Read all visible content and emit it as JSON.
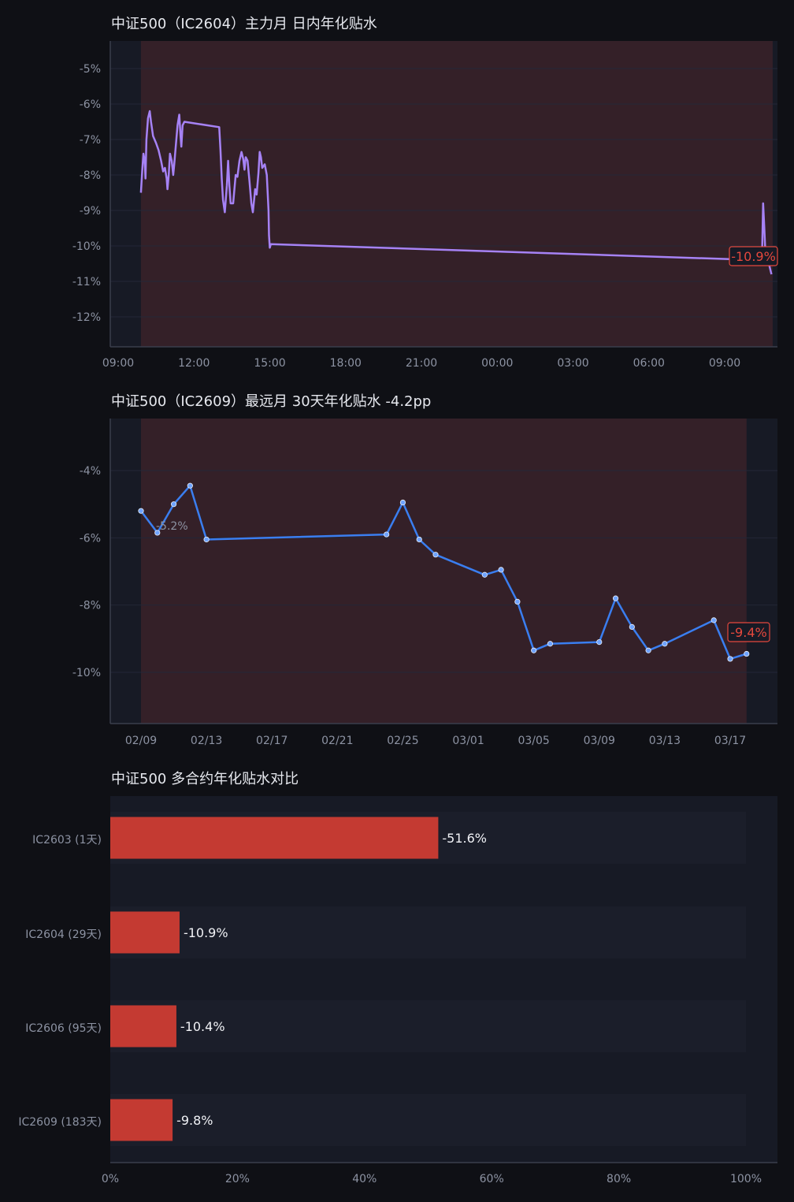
{
  "chart_data": [
    {
      "type": "line",
      "title": "中证500（IC2604）主力月 日内年化贴水",
      "x_unit": "time of day (hours since 09:00 on day 1; day 2 continues past 24)",
      "x_ticks": [
        "09:00",
        "12:00",
        "15:00",
        "18:00",
        "21:00",
        "00:00",
        "03:00",
        "06:00",
        "09:00"
      ],
      "xlim": [
        9.0,
        35.2
      ],
      "ylim": [
        -12.8,
        -4.2
      ],
      "y_ticks": [
        -5,
        -6,
        -7,
        -8,
        -9,
        -10,
        -11,
        -12
      ],
      "y_suffix": "%",
      "shade": {
        "x_start": 9.9,
        "x_end": 34.9,
        "color": "#342028"
      },
      "series": [
        {
          "color": "#a682f5",
          "points": [
            [
              9.9,
              -8.5
            ],
            [
              9.95,
              -7.9
            ],
            [
              10.0,
              -7.4
            ],
            [
              10.05,
              -7.6
            ],
            [
              10.08,
              -8.1
            ],
            [
              10.12,
              -7.0
            ],
            [
              10.18,
              -6.4
            ],
            [
              10.25,
              -6.2
            ],
            [
              10.3,
              -6.5
            ],
            [
              10.38,
              -6.9
            ],
            [
              10.5,
              -7.1
            ],
            [
              10.6,
              -7.3
            ],
            [
              10.7,
              -7.6
            ],
            [
              10.78,
              -7.9
            ],
            [
              10.85,
              -7.8
            ],
            [
              10.92,
              -8.1
            ],
            [
              10.95,
              -8.4
            ],
            [
              11.0,
              -8.0
            ],
            [
              11.05,
              -7.4
            ],
            [
              11.12,
              -7.6
            ],
            [
              11.18,
              -8.0
            ],
            [
              11.22,
              -7.7
            ],
            [
              11.28,
              -7.2
            ],
            [
              11.35,
              -6.6
            ],
            [
              11.42,
              -6.3
            ],
            [
              11.47,
              -6.9
            ],
            [
              11.5,
              -7.2
            ],
            [
              11.55,
              -6.6
            ],
            [
              11.62,
              -6.5
            ],
            [
              13.0,
              -6.65
            ],
            [
              13.05,
              -7.3
            ],
            [
              13.1,
              -8.1
            ],
            [
              13.15,
              -8.7
            ],
            [
              13.22,
              -9.05
            ],
            [
              13.3,
              -8.3
            ],
            [
              13.35,
              -7.6
            ],
            [
              13.4,
              -8.3
            ],
            [
              13.45,
              -8.8
            ],
            [
              13.55,
              -8.8
            ],
            [
              13.6,
              -8.4
            ],
            [
              13.65,
              -8.0
            ],
            [
              13.72,
              -8.05
            ],
            [
              13.8,
              -7.6
            ],
            [
              13.88,
              -7.35
            ],
            [
              13.95,
              -7.55
            ],
            [
              14.0,
              -7.85
            ],
            [
              14.05,
              -7.5
            ],
            [
              14.12,
              -7.6
            ],
            [
              14.2,
              -8.2
            ],
            [
              14.27,
              -8.8
            ],
            [
              14.33,
              -9.05
            ],
            [
              14.38,
              -8.7
            ],
            [
              14.42,
              -8.4
            ],
            [
              14.48,
              -8.55
            ],
            [
              14.55,
              -7.95
            ],
            [
              14.6,
              -7.35
            ],
            [
              14.65,
              -7.5
            ],
            [
              14.7,
              -7.8
            ],
            [
              14.8,
              -7.7
            ],
            [
              14.88,
              -8.0
            ],
            [
              14.95,
              -9.0
            ],
            [
              14.97,
              -9.7
            ],
            [
              15.0,
              -10.05
            ],
            [
              15.04,
              -9.95
            ],
            [
              34.4,
              -10.4
            ],
            [
              34.48,
              -10.2
            ],
            [
              34.52,
              -8.8
            ],
            [
              34.56,
              -9.4
            ],
            [
              34.6,
              -10.0
            ],
            [
              34.65,
              -10.4
            ],
            [
              34.75,
              -10.5
            ],
            [
              34.85,
              -10.8
            ]
          ]
        }
      ],
      "end_label": "-10.9%"
    },
    {
      "type": "line",
      "title": "中证500（IC2609）最远月 30天年化贴水   -4.2pp",
      "x_unit": "date",
      "x_ticks": [
        "02/09",
        "02/13",
        "02/17",
        "02/21",
        "02/25",
        "03/01",
        "03/05",
        "03/09",
        "03/13",
        "03/17"
      ],
      "x_tick_dates": [
        "02/09",
        "02/13",
        "02/17",
        "02/21",
        "02/25",
        "03/01",
        "03/05",
        "03/09",
        "03/13",
        "03/17"
      ],
      "ylim": [
        -11.5,
        -2.5
      ],
      "y_ticks": [
        -4,
        -6,
        -8,
        -10
      ],
      "y_suffix": "%",
      "shade": {
        "x_start": "02/09",
        "x_end": "03/18",
        "color": "#342028"
      },
      "series": [
        {
          "color": "#3a7ef0",
          "points": [
            [
              "02/09",
              -5.2
            ],
            [
              "02/10",
              -5.85
            ],
            [
              "02/11",
              -5.0
            ],
            [
              "02/12",
              -4.45
            ],
            [
              "02/13",
              -6.05
            ],
            [
              "02/24",
              -5.9
            ],
            [
              "02/25",
              -4.95
            ],
            [
              "02/26",
              -6.05
            ],
            [
              "02/27",
              -6.5
            ],
            [
              "03/02",
              -7.1
            ],
            [
              "03/03",
              -6.95
            ],
            [
              "03/04",
              -7.9
            ],
            [
              "03/05",
              -9.35
            ],
            [
              "03/06",
              -9.15
            ],
            [
              "03/09",
              -9.1
            ],
            [
              "03/10",
              -7.8
            ],
            [
              "03/11",
              -8.65
            ],
            [
              "03/12",
              -9.35
            ],
            [
              "03/13",
              -9.15
            ],
            [
              "03/16",
              -8.45
            ],
            [
              "03/17",
              -9.6
            ],
            [
              "03/18",
              -9.45
            ]
          ]
        }
      ],
      "start_label": "-5.2%",
      "end_label": "-9.4%"
    },
    {
      "type": "bar",
      "orientation": "horizontal",
      "title": "中证500 多合约年化贴水对比",
      "categories": [
        "IC2603 (1天)",
        "IC2604 (29天)",
        "IC2606 (95天)",
        "IC2609 (183天)"
      ],
      "values": [
        51.6,
        10.9,
        10.4,
        9.8
      ],
      "data_labels": [
        "-51.6%",
        "-10.9%",
        "-10.4%",
        "-9.8%"
      ],
      "xlim": [
        0,
        105
      ],
      "x_ticks": [
        "0%",
        "20%",
        "40%",
        "60%",
        "80%",
        "100%"
      ],
      "color": "#c43a32"
    }
  ]
}
